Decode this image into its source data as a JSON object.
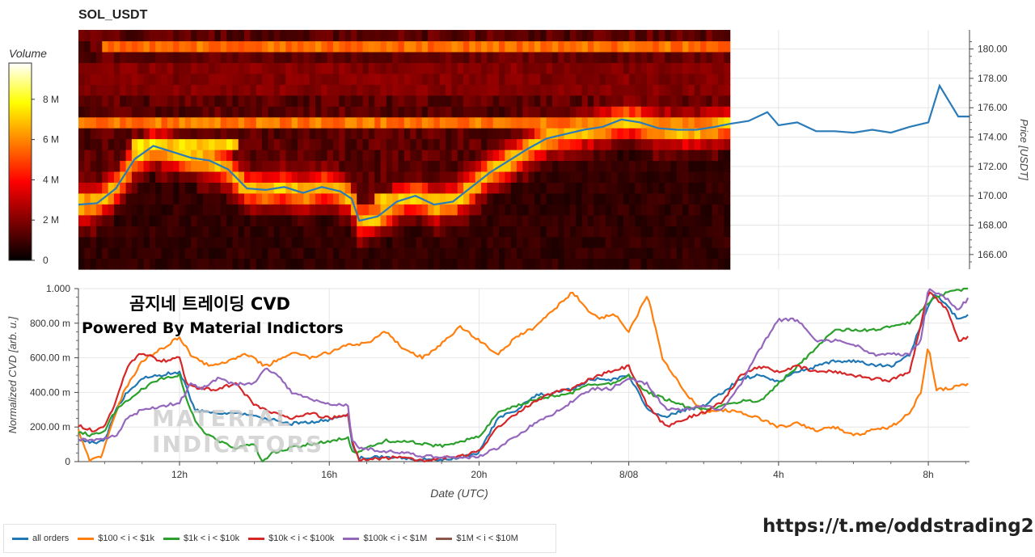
{
  "header": {
    "title": "SOL_USDT"
  },
  "branding": {
    "line1": "곰지네 트레이딩 CVD",
    "line2": "Powered By Material Indictors",
    "watermark_line1": "MATERIAL",
    "watermark_line2": "INDICATORS",
    "link": "https://t.me/oddstrading2"
  },
  "colors": {
    "all": "#1f77b4",
    "s100": "#ff7f0e",
    "s1k": "#2ca02c",
    "s10k": "#d62728",
    "s100k": "#9467bd",
    "s1m": "#8c564b",
    "price": "#2b7bb9"
  },
  "chart_data": [
    {
      "type": "heatmap",
      "title": "SOL_USDT",
      "colorbar": {
        "label": "Volume",
        "ticks": [
          "0",
          "2 M",
          "4 M",
          "6 M",
          "8 M"
        ],
        "range": [
          0,
          9.8
        ]
      },
      "y_axis": {
        "label": "Price [USDT]",
        "ticks": [
          "166.00",
          "168.00",
          "170.00",
          "172.00",
          "174.00",
          "176.00",
          "178.00",
          "180.00"
        ],
        "range": [
          165.0,
          181.3
        ]
      },
      "x_range_hours": [
        9.3,
        33.1
      ],
      "heatmap_end_hour": 26.7,
      "price_series": {
        "name": "Price",
        "x": [
          9.3,
          9.8,
          10.3,
          10.8,
          11.3,
          11.8,
          12.3,
          12.8,
          13.3,
          13.8,
          14.3,
          14.8,
          15.3,
          15.8,
          16.3,
          16.6,
          16.8,
          17.3,
          17.8,
          18.3,
          18.8,
          19.3,
          19.8,
          20.3,
          20.8,
          21.3,
          21.8,
          22.3,
          22.8,
          23.3,
          23.8,
          24.3,
          24.8,
          25.3,
          25.8,
          26.3,
          26.7,
          27.2,
          27.7,
          28.0,
          28.5,
          29.0,
          29.5,
          30.0,
          30.5,
          31.0,
          31.5,
          32.0,
          32.3,
          32.8,
          33.1
        ],
        "y": [
          169.4,
          169.5,
          170.5,
          172.5,
          173.4,
          173.0,
          172.6,
          172.4,
          171.8,
          170.5,
          170.4,
          170.6,
          170.2,
          170.6,
          170.3,
          169.8,
          168.3,
          168.6,
          169.6,
          170.0,
          169.4,
          169.6,
          170.6,
          171.6,
          172.4,
          173.2,
          173.9,
          174.2,
          174.5,
          174.7,
          175.2,
          175.0,
          174.6,
          174.5,
          174.5,
          174.7,
          174.9,
          175.1,
          175.7,
          174.8,
          175.0,
          174.4,
          174.4,
          174.3,
          174.5,
          174.3,
          174.7,
          175.0,
          177.5,
          175.4,
          175.4
        ]
      },
      "volume_levels": [
        {
          "price": 180.0,
          "volume": 7.2,
          "span": [
            9.9,
            26.7
          ]
        },
        {
          "price": 175.0,
          "volume": 6.0,
          "span": [
            9.3,
            26.7
          ]
        },
        {
          "price": 173.4,
          "volume": 8.2,
          "span": [
            10.7,
            13.5
          ]
        },
        {
          "price": 170.0,
          "volume": 8.0,
          "span": [
            9.3,
            10.0
          ]
        },
        {
          "price": 170.0,
          "volume": 8.5,
          "span": [
            17.2,
            19.8
          ]
        }
      ]
    },
    {
      "type": "line",
      "xlabel": "Date (UTC)",
      "ylabel": "Normalized CVD [arb. u.]",
      "ylim": [
        0,
        1
      ],
      "yticks": [
        "0",
        "200.00 m",
        "400.00 m",
        "600.00 m",
        "800.00 m",
        "1.000"
      ],
      "xticks": [
        "12h",
        "16h",
        "20h",
        "8/08",
        "4h",
        "8h"
      ],
      "x_range_hours": [
        9.3,
        33.1
      ],
      "series": [
        {
          "name": "all orders",
          "key": "all",
          "x": [
            9.3,
            9.7,
            10.0,
            10.3,
            10.6,
            11.0,
            11.5,
            12.0,
            12.2,
            12.4,
            12.8,
            13.5,
            14.0,
            14.5,
            15.0,
            15.5,
            16.0,
            16.5,
            16.6,
            16.8,
            17.5,
            18.0,
            18.5,
            19.0,
            19.5,
            20.0,
            20.5,
            21.0,
            21.5,
            22.0,
            22.5,
            23.0,
            23.5,
            24.0,
            24.5,
            25.0,
            25.5,
            26.0,
            26.5,
            27.0,
            27.5,
            28.0,
            28.5,
            29.0,
            29.5,
            30.0,
            30.5,
            31.0,
            31.5,
            32.0,
            32.2,
            32.5,
            32.8,
            33.1
          ],
          "y": [
            0.12,
            0.11,
            0.12,
            0.3,
            0.4,
            0.48,
            0.5,
            0.52,
            0.42,
            0.3,
            0.28,
            0.28,
            0.26,
            0.24,
            0.22,
            0.23,
            0.24,
            0.27,
            0.1,
            0.02,
            0.03,
            0.02,
            0.01,
            0.01,
            0.02,
            0.05,
            0.25,
            0.3,
            0.38,
            0.4,
            0.42,
            0.48,
            0.47,
            0.5,
            0.3,
            0.26,
            0.3,
            0.32,
            0.4,
            0.48,
            0.5,
            0.46,
            0.52,
            0.55,
            0.58,
            0.58,
            0.56,
            0.55,
            0.62,
            0.9,
            0.97,
            0.9,
            0.82,
            0.85
          ]
        },
        {
          "name": "$100 < i < $1k",
          "key": "s100",
          "x": [
            9.3,
            9.6,
            9.9,
            10.2,
            10.5,
            11.0,
            11.5,
            12.0,
            12.3,
            12.8,
            13.3,
            13.8,
            14.3,
            15.0,
            15.5,
            16.0,
            16.5,
            17.0,
            17.5,
            18.0,
            18.5,
            19.0,
            19.5,
            20.0,
            20.5,
            21.0,
            21.5,
            22.0,
            22.5,
            22.9,
            23.2,
            23.6,
            24.0,
            24.5,
            24.9,
            25.5,
            26.0,
            26.5,
            27.0,
            27.5,
            28.0,
            28.5,
            29.0,
            29.5,
            30.0,
            30.5,
            31.0,
            31.5,
            31.8,
            32.0,
            32.2,
            32.5,
            32.8,
            33.1
          ],
          "y": [
            0.18,
            0.0,
            0.03,
            0.22,
            0.4,
            0.58,
            0.65,
            0.72,
            0.62,
            0.55,
            0.58,
            0.62,
            0.55,
            0.63,
            0.6,
            0.63,
            0.68,
            0.68,
            0.75,
            0.65,
            0.6,
            0.68,
            0.78,
            0.7,
            0.62,
            0.72,
            0.78,
            0.88,
            0.98,
            0.88,
            0.82,
            0.86,
            0.75,
            0.97,
            0.6,
            0.4,
            0.28,
            0.3,
            0.28,
            0.25,
            0.2,
            0.22,
            0.18,
            0.2,
            0.15,
            0.18,
            0.2,
            0.28,
            0.4,
            0.68,
            0.42,
            0.42,
            0.44,
            0.45
          ]
        },
        {
          "name": "$1k < i < $10k",
          "key": "s1k",
          "x": [
            9.3,
            9.7,
            10.0,
            10.3,
            10.6,
            11.0,
            11.5,
            12.0,
            12.2,
            12.5,
            13.0,
            13.5,
            14.0,
            14.2,
            14.5,
            15.0,
            15.5,
            16.0,
            16.5,
            16.6,
            16.8,
            17.5,
            18.0,
            18.5,
            19.0,
            19.5,
            20.0,
            20.5,
            21.0,
            21.5,
            22.0,
            22.5,
            23.0,
            23.5,
            24.0,
            24.5,
            25.0,
            25.5,
            26.0,
            26.5,
            27.0,
            27.5,
            28.0,
            28.5,
            29.0,
            29.5,
            30.0,
            30.5,
            31.0,
            31.5,
            32.0,
            32.5,
            33.1
          ],
          "y": [
            0.17,
            0.15,
            0.18,
            0.3,
            0.35,
            0.42,
            0.48,
            0.5,
            0.35,
            0.2,
            0.12,
            0.08,
            0.1,
            0.0,
            0.05,
            0.08,
            0.1,
            0.12,
            0.14,
            0.05,
            0.06,
            0.12,
            0.12,
            0.1,
            0.09,
            0.12,
            0.14,
            0.28,
            0.32,
            0.36,
            0.38,
            0.4,
            0.45,
            0.45,
            0.5,
            0.4,
            0.36,
            0.32,
            0.3,
            0.32,
            0.35,
            0.35,
            0.45,
            0.55,
            0.66,
            0.76,
            0.76,
            0.76,
            0.78,
            0.8,
            0.92,
            0.98,
            1.0
          ]
        },
        {
          "name": "$10k < i < $100k",
          "key": "s10k",
          "x": [
            9.3,
            9.7,
            10.0,
            10.3,
            10.6,
            11.0,
            11.5,
            12.0,
            12.2,
            12.5,
            13.0,
            13.5,
            14.0,
            14.5,
            15.0,
            15.5,
            16.0,
            16.5,
            16.6,
            16.8,
            17.5,
            18.0,
            18.5,
            19.0,
            19.5,
            20.0,
            20.5,
            21.0,
            21.5,
            22.0,
            22.5,
            23.0,
            23.5,
            24.0,
            24.5,
            25.0,
            25.5,
            26.0,
            26.5,
            27.0,
            27.5,
            28.0,
            28.5,
            29.0,
            29.5,
            30.0,
            30.5,
            31.0,
            31.5,
            32.0,
            32.2,
            32.5,
            32.8,
            33.1
          ],
          "y": [
            0.21,
            0.18,
            0.2,
            0.35,
            0.55,
            0.63,
            0.58,
            0.6,
            0.45,
            0.42,
            0.42,
            0.45,
            0.33,
            0.28,
            0.25,
            0.28,
            0.25,
            0.27,
            0.12,
            0.01,
            0.02,
            0.03,
            0.0,
            0.02,
            0.03,
            0.06,
            0.2,
            0.28,
            0.35,
            0.4,
            0.42,
            0.48,
            0.52,
            0.55,
            0.32,
            0.2,
            0.25,
            0.28,
            0.35,
            0.5,
            0.55,
            0.52,
            0.55,
            0.52,
            0.52,
            0.5,
            0.48,
            0.47,
            0.52,
            0.98,
            0.95,
            0.88,
            0.7,
            0.72
          ]
        },
        {
          "name": "$100k < i < $1M",
          "key": "s100k",
          "x": [
            9.3,
            9.7,
            10.0,
            10.3,
            10.6,
            11.0,
            11.5,
            12.0,
            12.3,
            12.6,
            13.0,
            13.5,
            14.0,
            14.3,
            14.7,
            15.0,
            15.5,
            16.0,
            16.5,
            16.6,
            16.8,
            17.5,
            18.0,
            18.5,
            19.0,
            19.5,
            20.0,
            20.5,
            21.0,
            21.5,
            22.0,
            22.5,
            23.0,
            23.5,
            24.0,
            24.5,
            25.0,
            25.5,
            26.0,
            26.5,
            27.0,
            27.5,
            28.0,
            28.5,
            29.0,
            29.5,
            30.0,
            30.5,
            31.0,
            31.5,
            31.8,
            32.0,
            32.5,
            32.8,
            33.1
          ],
          "y": [
            0.13,
            0.12,
            0.13,
            0.15,
            0.25,
            0.3,
            0.32,
            0.34,
            0.45,
            0.42,
            0.48,
            0.45,
            0.45,
            0.55,
            0.48,
            0.4,
            0.36,
            0.33,
            0.33,
            0.12,
            0.08,
            0.06,
            0.05,
            0.03,
            0.03,
            0.02,
            0.03,
            0.08,
            0.15,
            0.22,
            0.28,
            0.35,
            0.42,
            0.42,
            0.48,
            0.45,
            0.3,
            0.3,
            0.32,
            0.3,
            0.45,
            0.65,
            0.82,
            0.82,
            0.7,
            0.7,
            0.68,
            0.62,
            0.62,
            0.62,
            0.7,
            1.0,
            0.94,
            0.88,
            0.95
          ]
        },
        {
          "name": "$1M < i < $10M",
          "key": "s1m",
          "x": [],
          "y": []
        }
      ]
    }
  ]
}
